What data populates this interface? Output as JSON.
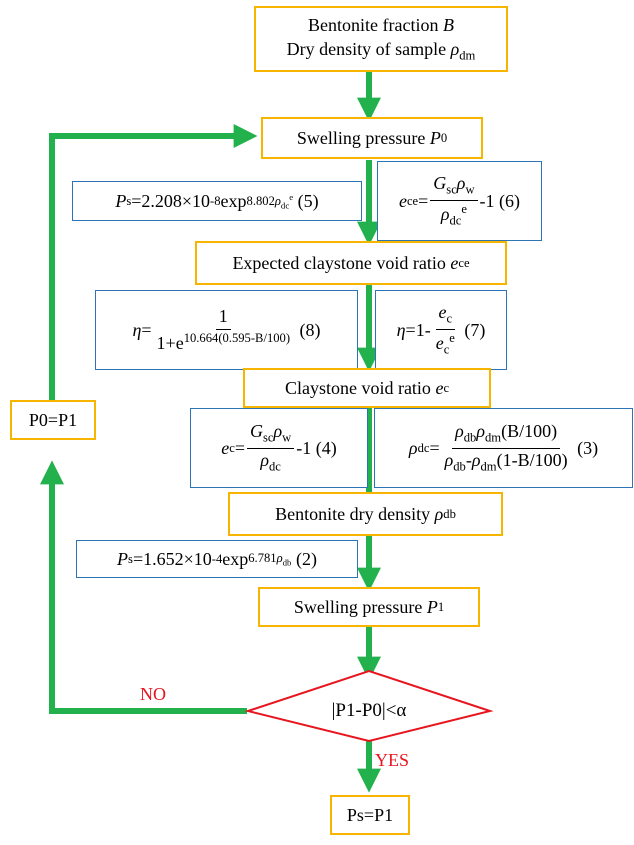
{
  "colors": {
    "arrow": "#22b14c",
    "box_border": "#f7b500",
    "eq_border": "#2e74b5",
    "decision": "#e8141e",
    "label": "#e8141e"
  },
  "nodes": {
    "input": {
      "line1": "Bentonite fraction ",
      "line1_var": "B",
      "line2": "Dry density of sample ",
      "line2_var": "ρ",
      "line2_sub": "dm"
    },
    "p0": {
      "text": "Swelling pressure ",
      "var": "P",
      "sub": "0"
    },
    "expected_void": {
      "text": "Expected claystone void ratio ",
      "var": "e",
      "sub": "c",
      "sup": "e"
    },
    "void": {
      "text": "Claystone void ratio ",
      "var": "e",
      "sub": "c"
    },
    "dry_density": {
      "text": "Bentonite dry density ",
      "var": "ρ",
      "sub": "db"
    },
    "p1": {
      "text": "Swelling pressure ",
      "var": "P",
      "sub": "1"
    },
    "decision": {
      "text": "|P1-P0|<α"
    },
    "result": {
      "text": "Ps=P1"
    },
    "feedback": {
      "text": "P0=P1"
    }
  },
  "equations": {
    "eq5": {
      "tag": "(5)",
      "coef": "=2.208×10",
      "exp": "-8",
      "fn": "exp",
      "power": "8.802"
    },
    "eq6": {
      "tag": "(6)",
      "rhs_tail": "-1"
    },
    "eq8": {
      "tag": "(8)",
      "num": "1",
      "den_base": "1+e",
      "den_exp": "10.664(0.595-B/100)"
    },
    "eq7": {
      "tag": "(7)",
      "lhs": "=1-"
    },
    "eq4": {
      "tag": "(4)",
      "rhs_tail": "-1"
    },
    "eq3": {
      "tag": "(3)",
      "num_tail": "(B/100)",
      "den_tail": "(1-B/100)"
    },
    "eq2": {
      "tag": "(2)",
      "coef": "=1.652×10",
      "exp": "-4",
      "fn": "exp",
      "power": "6.781"
    }
  },
  "labels": {
    "no": "NO",
    "yes": "YES"
  }
}
